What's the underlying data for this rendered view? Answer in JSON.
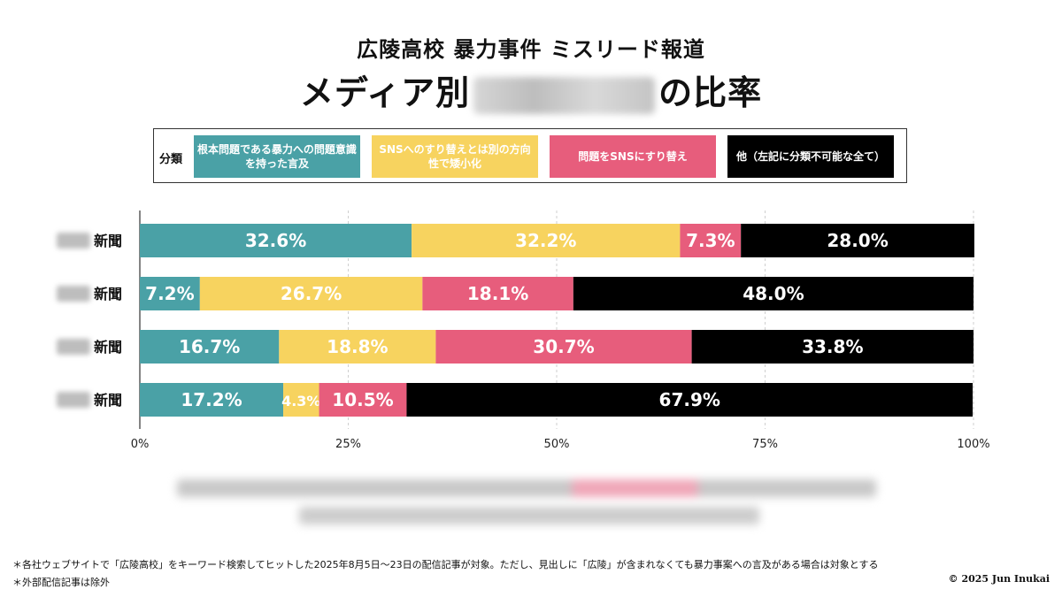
{
  "title_line1": "広陵高校 暴力事件 ミスリード報道",
  "title_line2_prefix": "メディア別",
  "title_line2_suffix": "の比率",
  "legend": {
    "title": "分類",
    "items": [
      {
        "label": "根本問題である暴力への問題意識を持った言及",
        "color": "#4aa1a6",
        "text_color": "#ffffff"
      },
      {
        "label": "SNSへのすり替えとは別の方向性で矮小化",
        "color": "#f7d35f",
        "text_color": "#ffffff"
      },
      {
        "label": "問題をSNSにすり替え",
        "color": "#e75d7c",
        "text_color": "#ffffff"
      },
      {
        "label": "他（左記に分類不可能な全て）",
        "color": "#000000",
        "text_color": "#ffffff"
      }
    ]
  },
  "chart_data": {
    "type": "bar",
    "orientation": "horizontal",
    "stacked": true,
    "categories": [
      "新聞",
      "新聞",
      "新聞",
      "新聞"
    ],
    "series": [
      {
        "name": "根本問題である暴力への問題意識を持った言及",
        "values": [
          32.6,
          7.2,
          16.7,
          17.2
        ]
      },
      {
        "name": "SNSへのすり替えとは別の方向性で矮小化",
        "values": [
          32.2,
          26.7,
          18.8,
          4.3
        ]
      },
      {
        "name": "問題をSNSにすり替え",
        "values": [
          7.3,
          18.1,
          30.7,
          10.5
        ]
      },
      {
        "name": "他（左記に分類不可能な全て）",
        "values": [
          28.0,
          48.0,
          33.8,
          67.9
        ]
      }
    ],
    "data_labels": [
      [
        "32.6%",
        "32.2%",
        "7.3%",
        "28.0%"
      ],
      [
        "7.2%",
        "26.7%",
        "18.1%",
        "48.0%"
      ],
      [
        "16.7%",
        "18.8%",
        "30.7%",
        "33.8%"
      ],
      [
        "17.2%",
        "4.3%",
        "10.5%",
        "67.9%"
      ]
    ],
    "xlim": [
      0,
      100
    ],
    "xticks": [
      0,
      25,
      50,
      75,
      100
    ],
    "xtick_labels": [
      "0%",
      "25%",
      "50%",
      "75%",
      "100%"
    ],
    "grid": true,
    "legend_placement": "top"
  },
  "notes": [
    "＊各社ウェブサイトで「広陵高校」をキーワード検索してヒットした2025年8月5日〜23日の配信記事が対象。ただし、見出しに「広陵」が含まれなくても暴力事案への言及がある場合は対象とする",
    "＊外部配信記事は除外"
  ],
  "copyright": "© 2025 Jun Inukai"
}
